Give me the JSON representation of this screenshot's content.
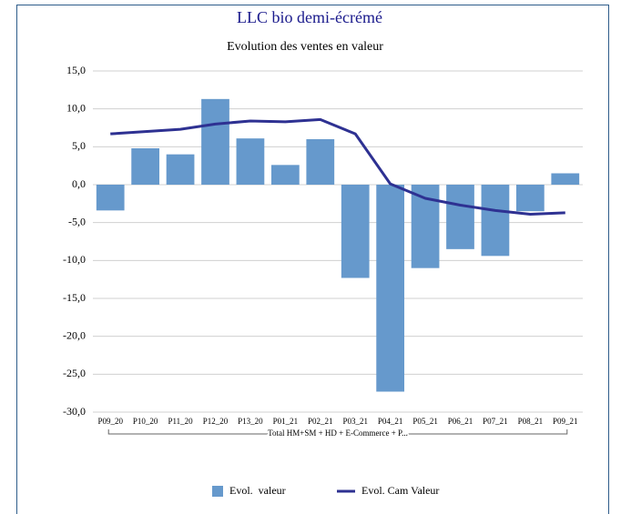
{
  "chart_data": {
    "type": "bar_line",
    "title": "LLC bio demi-écrémé",
    "subtitle": "Evolution des ventes en valeur",
    "categories": [
      "P09_20",
      "P10_20",
      "P11_20",
      "P12_20",
      "P13_20",
      "P01_21",
      "P02_21",
      "P03_21",
      "P04_21",
      "P05_21",
      "P06_21",
      "P07_21",
      "P08_21",
      "P09_21"
    ],
    "x_group_label": "Total HM+SM + HD + E-Commerce + P...",
    "series": [
      {
        "name": "Evol.  valeur",
        "type": "bar",
        "color": "#6699cc",
        "values": [
          -3.4,
          4.8,
          4.0,
          11.3,
          6.1,
          2.6,
          6.0,
          -12.3,
          -27.3,
          -11.0,
          -8.5,
          -9.4,
          -3.5,
          1.5
        ]
      },
      {
        "name": "Evol. Cam Valeur",
        "type": "line",
        "color": "#2e3192",
        "values": [
          6.7,
          7.0,
          7.3,
          8.0,
          8.4,
          8.3,
          8.6,
          6.7,
          0.1,
          -1.8,
          -2.7,
          -3.4,
          -3.9,
          -3.7
        ]
      }
    ],
    "ylim": [
      -30,
      15
    ],
    "yticks": [
      {
        "value": -30,
        "label": "-30,0"
      },
      {
        "value": -25,
        "label": "-25,0"
      },
      {
        "value": -20,
        "label": "-20,0"
      },
      {
        "value": -15,
        "label": "-15,0"
      },
      {
        "value": -10,
        "label": "-10,0"
      },
      {
        "value": -5,
        "label": "-5,0"
      },
      {
        "value": 0,
        "label": "0,0"
      },
      {
        "value": 5,
        "label": "5,0"
      },
      {
        "value": 10,
        "label": "10,0"
      },
      {
        "value": 15,
        "label": "15,0"
      }
    ],
    "grid": true,
    "legend": "bottom"
  }
}
